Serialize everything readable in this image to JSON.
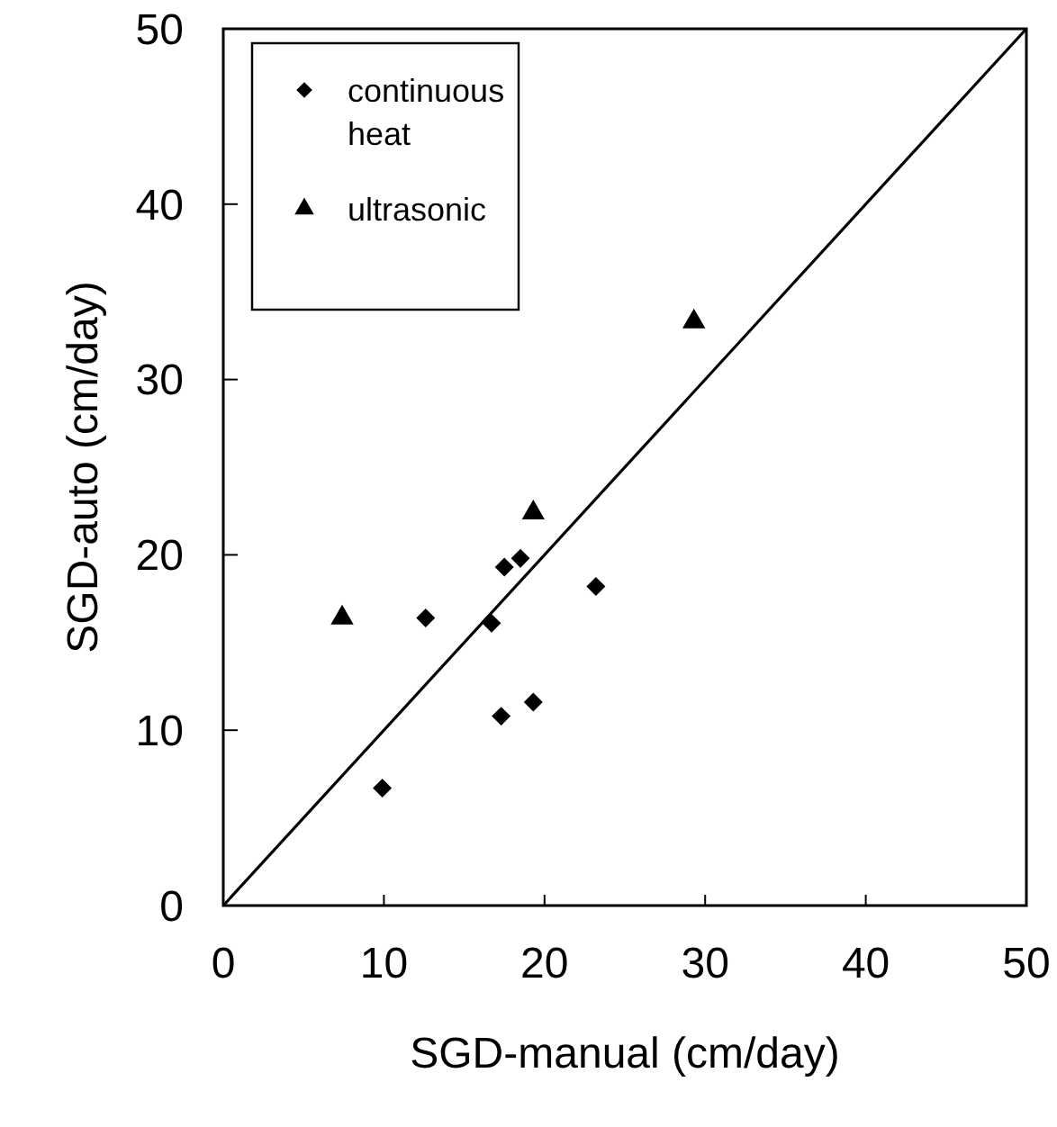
{
  "chart_data": {
    "type": "scatter",
    "xlabel": "SGD-manual (cm/day)",
    "ylabel": "SGD-auto (cm/day)",
    "xlim": [
      0,
      50
    ],
    "ylim": [
      0,
      50
    ],
    "xticks": [
      0,
      10,
      20,
      30,
      40,
      50
    ],
    "yticks": [
      0,
      10,
      20,
      30,
      40,
      50
    ],
    "grid": false,
    "legend": "top left",
    "series": [
      {
        "name": "continuous heat",
        "color": "#000000",
        "marker": "diamond",
        "x": [
          9.9,
          12.6,
          16.7,
          17.3,
          17.5,
          18.5,
          19.3,
          23.2
        ],
        "values": [
          6.7,
          16.4,
          16.1,
          10.8,
          19.3,
          19.8,
          11.6,
          18.2
        ]
      },
      {
        "name": "ultrasonic",
        "color": "#000000",
        "marker": "triangle",
        "x": [
          7.4,
          19.3,
          29.3
        ],
        "values": [
          16.4,
          22.4,
          33.3
        ]
      },
      {
        "type": "line",
        "color": "#000000",
        "marker": "none",
        "x": [
          0,
          50
        ],
        "values": [
          0,
          50
        ]
      }
    ]
  }
}
